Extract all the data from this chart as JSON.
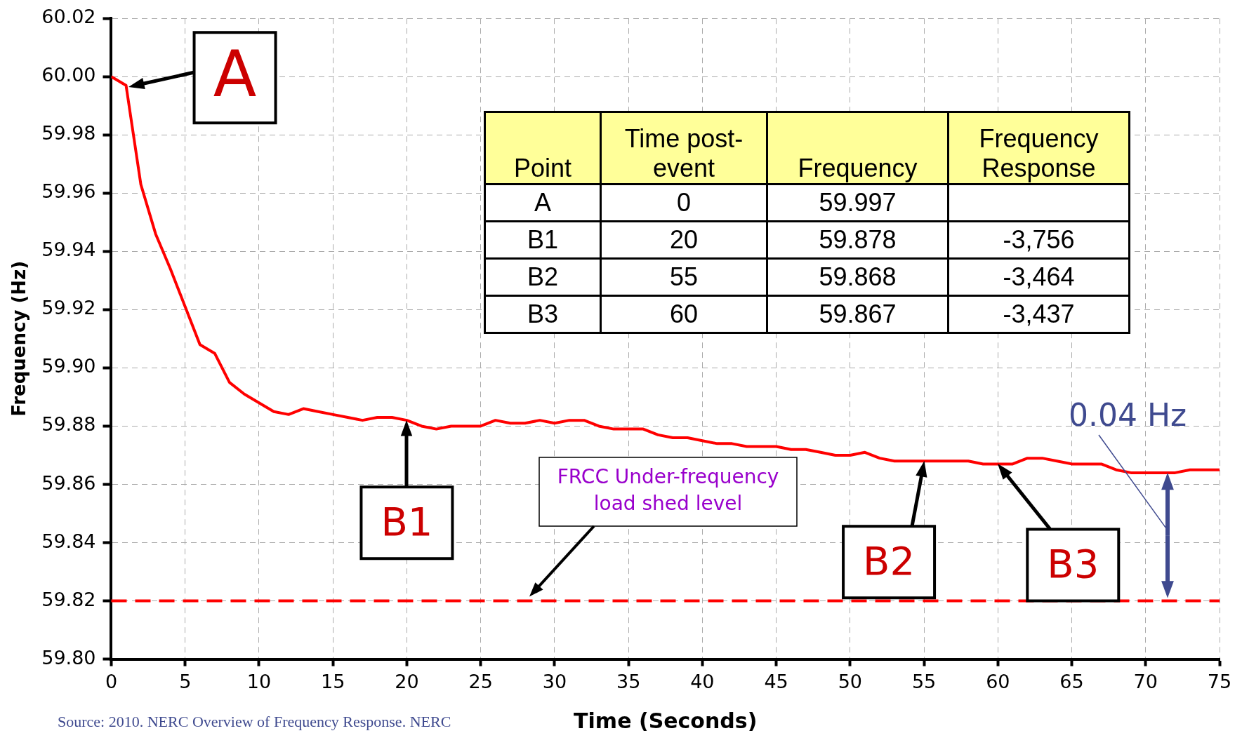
{
  "chart_data": [
    {
      "type": "line",
      "xlabel": "Time (Seconds)",
      "ylabel": "Frequency (Hz)",
      "x": [
        0,
        1,
        2,
        3,
        4,
        5,
        6,
        7,
        8,
        9,
        10,
        11,
        12,
        13,
        14,
        15,
        16,
        17,
        18,
        19,
        20,
        21,
        22,
        23,
        24,
        25,
        26,
        27,
        28,
        29,
        30,
        31,
        32,
        33,
        34,
        35,
        36,
        37,
        38,
        39,
        40,
        41,
        42,
        43,
        44,
        45,
        46,
        47,
        48,
        49,
        50,
        51,
        52,
        53,
        54,
        55,
        56,
        57,
        58,
        59,
        60,
        61,
        62,
        63,
        64,
        65,
        66,
        67,
        68,
        69,
        70,
        71,
        72,
        73,
        74,
        75
      ],
      "series": [
        {
          "color": "#ff0000",
          "values": [
            60.0,
            59.997,
            59.963,
            59.946,
            59.934,
            59.921,
            59.908,
            59.905,
            59.895,
            59.891,
            59.888,
            59.885,
            59.884,
            59.886,
            59.885,
            59.884,
            59.883,
            59.882,
            59.883,
            59.883,
            59.882,
            59.88,
            59.879,
            59.88,
            59.88,
            59.88,
            59.882,
            59.881,
            59.881,
            59.882,
            59.881,
            59.882,
            59.882,
            59.88,
            59.879,
            59.879,
            59.879,
            59.877,
            59.876,
            59.876,
            59.875,
            59.874,
            59.874,
            59.873,
            59.873,
            59.873,
            59.872,
            59.872,
            59.871,
            59.87,
            59.87,
            59.871,
            59.869,
            59.868,
            59.868,
            59.868,
            59.868,
            59.868,
            59.868,
            59.867,
            59.867,
            59.867,
            59.869,
            59.869,
            59.868,
            59.867,
            59.867,
            59.867,
            59.865,
            59.864,
            59.864,
            59.864,
            59.864,
            59.865,
            59.865,
            59.865
          ]
        }
      ],
      "xlim": [
        0,
        75
      ],
      "xticks": [
        0,
        5,
        10,
        15,
        20,
        25,
        30,
        35,
        40,
        45,
        50,
        55,
        60,
        65,
        70,
        75
      ],
      "ylim": [
        59.8,
        60.02
      ],
      "yticks": [
        {
          "value": 59.8,
          "label": "59.80"
        },
        {
          "value": 59.82,
          "label": "59.82"
        },
        {
          "value": 59.84,
          "label": "59.84"
        },
        {
          "value": 59.86,
          "label": "59.86"
        },
        {
          "value": 59.88,
          "label": "59.88"
        },
        {
          "value": 59.9,
          "label": "59.90"
        },
        {
          "value": 59.92,
          "label": "59.92"
        },
        {
          "value": 59.94,
          "label": "59.94"
        },
        {
          "value": 59.96,
          "label": "59.96"
        },
        {
          "value": 59.98,
          "label": "59.98"
        },
        {
          "value": 60.0,
          "label": "60.00"
        },
        {
          "value": 60.02,
          "label": "60.02"
        }
      ],
      "grid": true,
      "legend": false,
      "marker": "none",
      "line_style": "solid",
      "ref_lines": [
        {
          "axis": "y",
          "value": 59.82,
          "color": "#ff0000",
          "line_style": "dashed"
        }
      ],
      "annotations": [
        {
          "text": "A",
          "x": 1,
          "y": 59.997
        },
        {
          "text": "B1",
          "x": 20,
          "y": 59.882
        },
        {
          "text": "B2",
          "x": 55,
          "y": 59.868
        },
        {
          "text": "B3",
          "x": 60,
          "y": 59.867
        },
        "FRCC Under-frequency load shed level",
        "0.04 Hz",
        "Source: 2010. NERC Overview of Frequency Response. NERC"
      ]
    },
    {
      "type": "other",
      "categories": [
        "Point",
        "Time post-event",
        "Frequency",
        "Frequency Response"
      ],
      "cell_labels": [
        [
          "A",
          "0",
          "59.997",
          null
        ],
        [
          "B1",
          "20",
          "59.878",
          "-3,756"
        ],
        [
          "B2",
          "55",
          "59.868",
          "-3,464"
        ],
        [
          "B3",
          "60",
          "59.867",
          "-3,437"
        ]
      ]
    }
  ]
}
